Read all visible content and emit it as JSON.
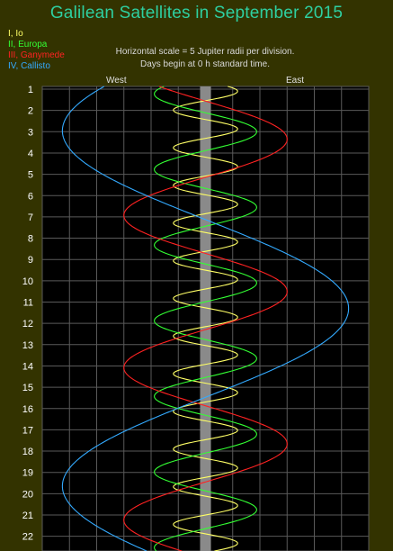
{
  "title": "Galilean Satellites in September 2015",
  "notes": {
    "line1": "Horizontal scale = 5 Jupiter radii per division.",
    "line2": "Days begin at 0 h standard time."
  },
  "directions": {
    "west": "West",
    "east": "East"
  },
  "legend": [
    {
      "label": "I, Io",
      "color": "#ffff66"
    },
    {
      "label": "II, Europa",
      "color": "#33ff33"
    },
    {
      "label": "III, Ganymede",
      "color": "#ff2222"
    },
    {
      "label": "IV, Callisto",
      "color": "#33aaff"
    }
  ],
  "colors": {
    "background": "#333300",
    "plot_bg": "#000000",
    "grid": "#5a5a5a",
    "jupiter_band": "#8a8a8a",
    "tick_labels": "#ffffff"
  },
  "chart_data": {
    "type": "line",
    "x_unit": "Jupiter radii per division: 5",
    "xlim": [
      -30,
      30
    ],
    "ylim": [
      1,
      22.3
    ],
    "days": [
      1,
      2,
      3,
      4,
      5,
      6,
      7,
      8,
      9,
      10,
      11,
      12,
      13,
      14,
      15,
      16,
      17,
      18,
      19,
      20,
      21,
      22
    ],
    "series": [
      {
        "name": "I, Io",
        "color": "#ffff66",
        "amplitude": 5.9,
        "period_days": 1.769,
        "phase_day_max_east": 1.1
      },
      {
        "name": "II, Europa",
        "color": "#33ff33",
        "amplitude": 9.4,
        "period_days": 3.551,
        "phase_day_max_east": 3.0
      },
      {
        "name": "III, Ganymede",
        "color": "#ff2222",
        "amplitude": 15.0,
        "period_days": 7.155,
        "phase_day_max_east": 3.35
      },
      {
        "name": "IV, Callisto",
        "color": "#33aaff",
        "amplitude": 26.3,
        "period_days": 16.689,
        "phase_day_max_east": 11.3
      }
    ]
  }
}
